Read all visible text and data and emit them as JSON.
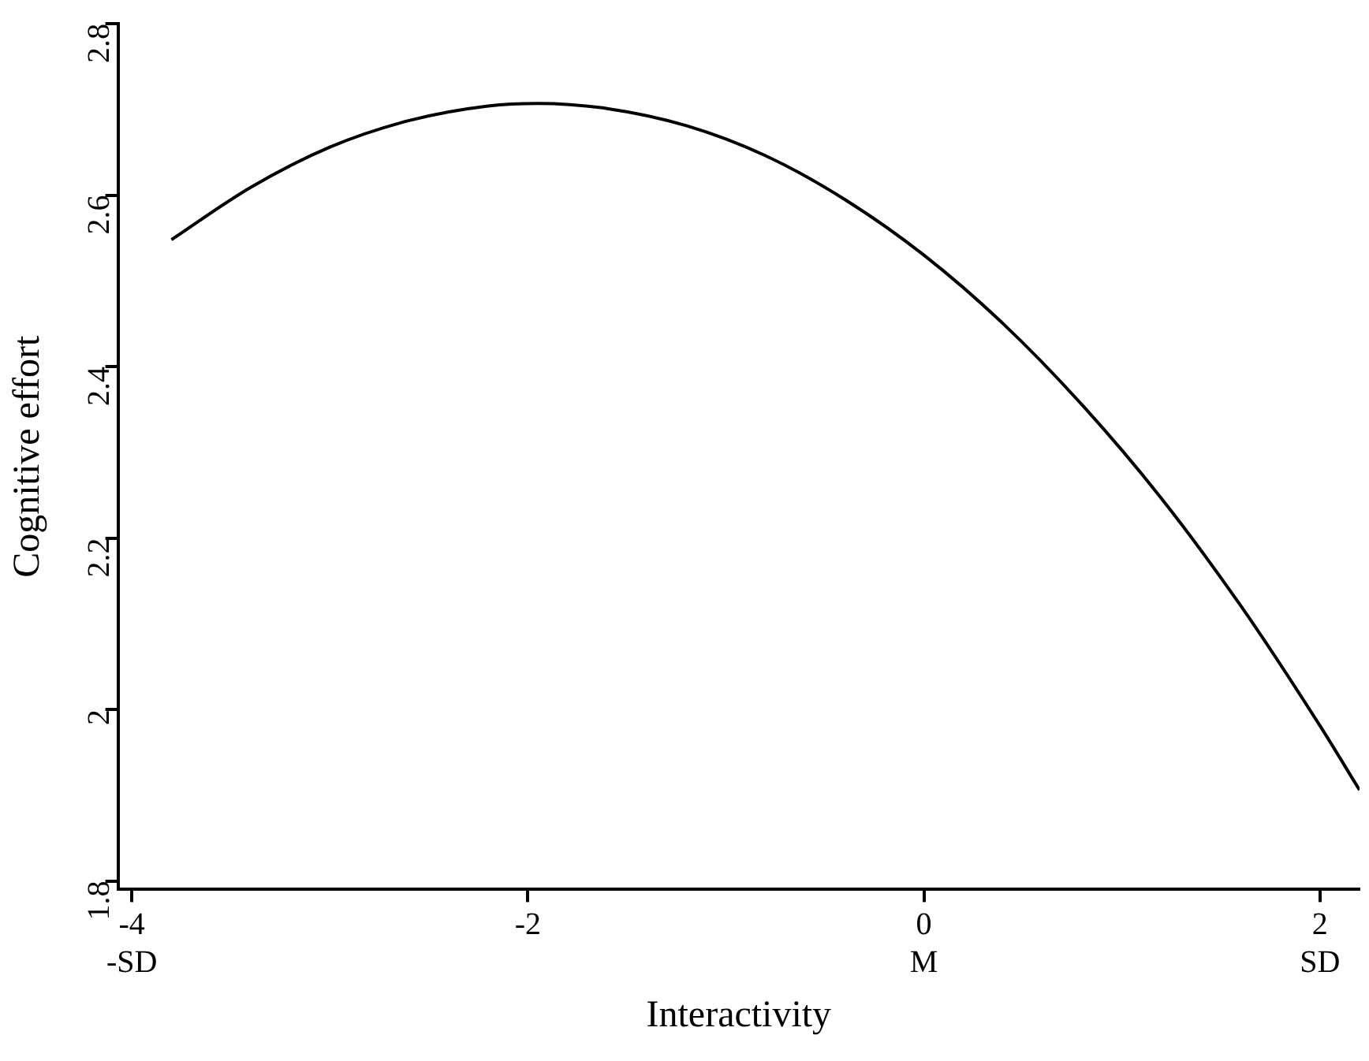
{
  "chart_data": {
    "type": "line",
    "xlabel": "Interactivity",
    "ylabel": "Cognitive effort",
    "xlim": [
      -4.07,
      2.2
    ],
    "xticks": [
      {
        "value": -4,
        "label": "-4\n-SD"
      },
      -2,
      {
        "value": 0,
        "label": "0\nM"
      },
      {
        "value": 2,
        "label": "2\nSD"
      }
    ],
    "ylim": [
      1.79,
      2.8
    ],
    "yticks": [
      1.8,
      2,
      2.2,
      2.4,
      2.6,
      2.8
    ],
    "grid": false,
    "legend": false,
    "marker": "none",
    "line_style": "solid",
    "series": [
      {
        "color": "#000000",
        "x": [
          -3.8,
          -3.4,
          -3,
          -2.6,
          -2.2,
          -1.95,
          -1.6,
          -1.2,
          -0.8,
          -0.4,
          0,
          0.4,
          0.8,
          1.2,
          1.6,
          2,
          2.2
        ],
        "values": [
          2.548,
          2.609,
          2.656,
          2.687,
          2.704,
          2.707,
          2.701,
          2.681,
          2.646,
          2.595,
          2.53,
          2.45,
          2.355,
          2.246,
          2.121,
          1.981,
          1.906
        ]
      }
    ]
  }
}
